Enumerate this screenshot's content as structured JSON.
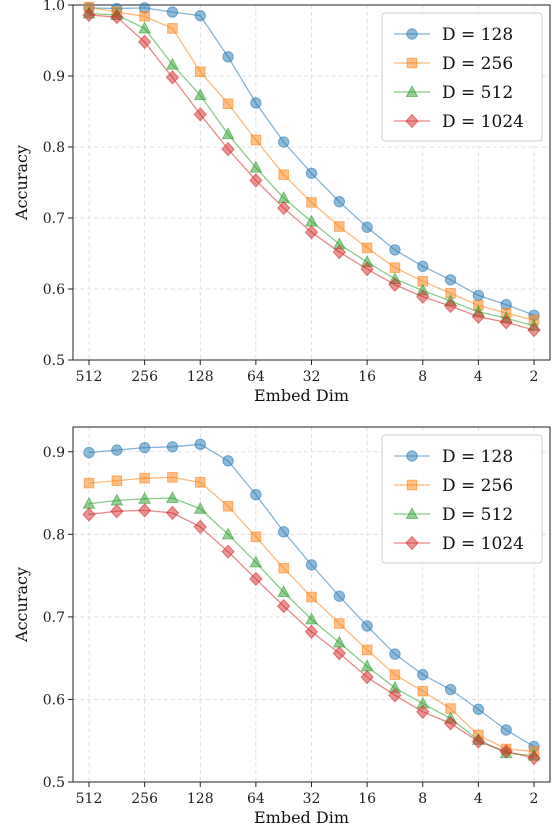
{
  "chart_data": [
    {
      "type": "line",
      "xlabel": "Embed Dim",
      "ylabel": "Accuracy",
      "ylim": [
        0.5,
        1.0
      ],
      "yticks": [
        "0.5",
        "0.6",
        "0.7",
        "0.8",
        "0.9",
        "1.0"
      ],
      "xticks": [
        "512",
        "256",
        "128",
        "64",
        "32",
        "16",
        "8",
        "4",
        "2"
      ],
      "x": [
        512,
        384,
        256,
        192,
        128,
        96,
        64,
        48,
        32,
        24,
        16,
        12,
        8,
        6,
        4,
        3,
        2
      ],
      "grid": true,
      "legend": "top-right",
      "series": [
        {
          "name": "D = 128",
          "color": "#1f77b4",
          "marker": "circle",
          "values": [
            0.996,
            0.995,
            0.996,
            0.99,
            0.985,
            0.927,
            0.862,
            0.807,
            0.763,
            0.723,
            0.687,
            0.655,
            0.632,
            0.613,
            0.591,
            0.578,
            0.563
          ]
        },
        {
          "name": "D = 256",
          "color": "#ff7f0e",
          "marker": "square",
          "values": [
            0.997,
            0.99,
            0.984,
            0.967,
            0.906,
            0.861,
            0.81,
            0.761,
            0.722,
            0.688,
            0.658,
            0.63,
            0.611,
            0.594,
            0.577,
            0.566,
            0.556
          ]
        },
        {
          "name": "D = 512",
          "color": "#2ca02c",
          "marker": "triangle",
          "values": [
            0.988,
            0.986,
            0.967,
            0.916,
            0.873,
            0.818,
            0.771,
            0.728,
            0.695,
            0.663,
            0.638,
            0.614,
            0.598,
            0.583,
            0.568,
            0.559,
            0.548
          ]
        },
        {
          "name": "D = 1024",
          "color": "#d62728",
          "marker": "diamond",
          "values": [
            0.986,
            0.983,
            0.948,
            0.898,
            0.846,
            0.797,
            0.753,
            0.714,
            0.68,
            0.652,
            0.628,
            0.606,
            0.589,
            0.576,
            0.561,
            0.553,
            0.542
          ]
        }
      ]
    },
    {
      "type": "line",
      "xlabel": "Embed Dim",
      "ylabel": "Accuracy",
      "ylim": [
        0.5,
        0.93
      ],
      "yticks": [
        "0.5",
        "0.6",
        "0.7",
        "0.8",
        "0.9"
      ],
      "xticks": [
        "512",
        "256",
        "128",
        "64",
        "32",
        "16",
        "8",
        "4",
        "2"
      ],
      "x": [
        512,
        384,
        256,
        192,
        128,
        96,
        64,
        48,
        32,
        24,
        16,
        12,
        8,
        6,
        4,
        3,
        2
      ],
      "grid": true,
      "legend": "top-right",
      "series": [
        {
          "name": "D = 128",
          "color": "#1f77b4",
          "marker": "circle",
          "values": [
            0.899,
            0.902,
            0.905,
            0.906,
            0.909,
            0.889,
            0.848,
            0.803,
            0.763,
            0.725,
            0.689,
            0.655,
            0.63,
            0.612,
            0.588,
            0.563,
            0.543
          ]
        },
        {
          "name": "D = 256",
          "color": "#ff7f0e",
          "marker": "square",
          "values": [
            0.862,
            0.865,
            0.868,
            0.869,
            0.863,
            0.834,
            0.797,
            0.759,
            0.724,
            0.692,
            0.66,
            0.63,
            0.61,
            0.589,
            0.557,
            0.54,
            0.537
          ]
        },
        {
          "name": "D = 512",
          "color": "#2ca02c",
          "marker": "triangle",
          "values": [
            0.837,
            0.841,
            0.843,
            0.844,
            0.831,
            0.8,
            0.766,
            0.73,
            0.697,
            0.669,
            0.64,
            0.614,
            0.595,
            0.577,
            0.551,
            0.535,
            0.532
          ]
        },
        {
          "name": "D = 1024",
          "color": "#d62728",
          "marker": "diamond",
          "values": [
            0.824,
            0.828,
            0.829,
            0.826,
            0.809,
            0.779,
            0.746,
            0.713,
            0.682,
            0.656,
            0.627,
            0.605,
            0.585,
            0.571,
            0.549,
            0.537,
            0.529
          ]
        }
      ]
    }
  ]
}
